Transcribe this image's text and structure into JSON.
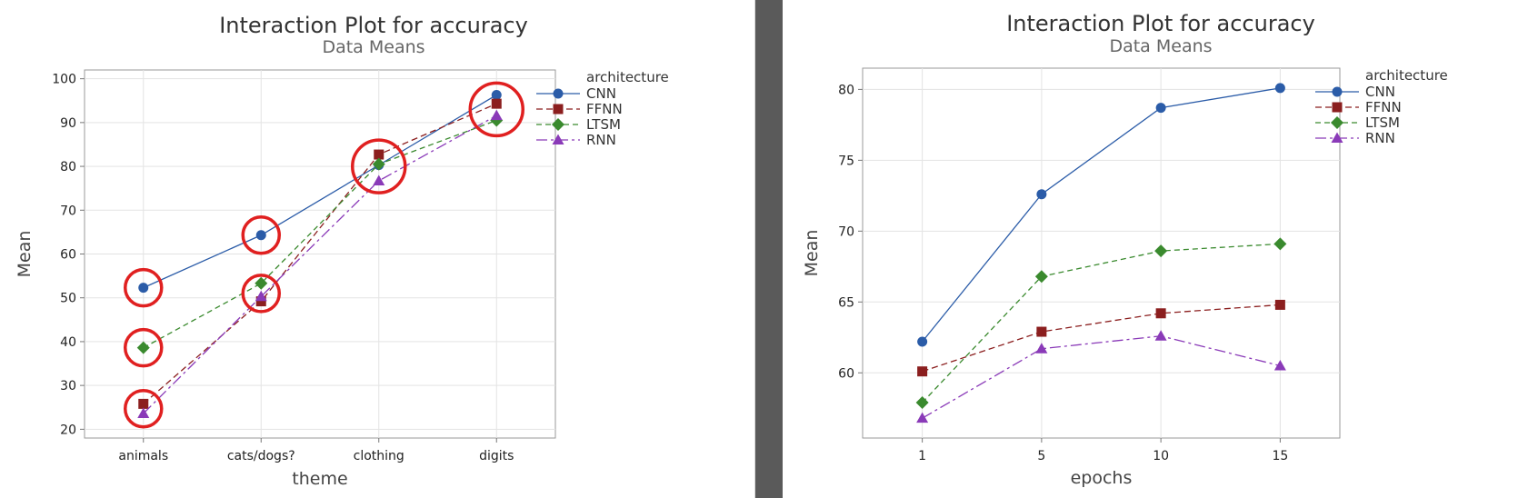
{
  "chart_data": [
    {
      "type": "line",
      "title": "Interaction Plot for accuracy",
      "subtitle": "Data Means",
      "xlabel": "theme",
      "ylabel": "Mean",
      "categories": [
        "animals",
        "cats/dogs?",
        "clothing",
        "digits"
      ],
      "ylim": [
        18,
        102
      ],
      "yticks": [
        20,
        30,
        40,
        50,
        60,
        70,
        80,
        90,
        100
      ],
      "grid": true,
      "legend_title": "architecture",
      "legend_position": "right",
      "series": [
        {
          "name": "CNN",
          "values": [
            52.3,
            64.3,
            80.3,
            96.3
          ],
          "color": "#2b5ca8",
          "marker": "circle",
          "dash": ""
        },
        {
          "name": "FFNN",
          "values": [
            25.8,
            49.2,
            82.7,
            94.3
          ],
          "color": "#8b1e1e",
          "marker": "square",
          "dash": "7,4"
        },
        {
          "name": "LTSM",
          "values": [
            38.6,
            53.3,
            80.5,
            90.5
          ],
          "color": "#3a8a2e",
          "marker": "diamond",
          "dash": "6,4"
        },
        {
          "name": "RNN",
          "values": [
            23.6,
            50.3,
            76.7,
            91.6
          ],
          "color": "#8a3ab8",
          "marker": "triangle",
          "dash": "12,4,3,4"
        }
      ],
      "annotations": {
        "type": "circle-highlight",
        "color": "#e02020",
        "points": [
          {
            "category": "animals",
            "value": 52.3
          },
          {
            "category": "animals",
            "value": 38.6
          },
          {
            "category": "animals",
            "value": 24.7
          },
          {
            "category": "cats/dogs?",
            "value": 64.3
          },
          {
            "category": "cats/dogs?",
            "value": 51.0
          },
          {
            "category": "clothing",
            "value": 80.0
          },
          {
            "category": "digits",
            "value": 93.0
          }
        ]
      }
    },
    {
      "type": "line",
      "title": "Interaction Plot for accuracy",
      "subtitle": "Data Means",
      "xlabel": "epochs",
      "ylabel": "Mean",
      "categories": [
        "1",
        "5",
        "10",
        "15"
      ],
      "ylim": [
        55.4,
        81.5
      ],
      "yticks": [
        60,
        65,
        70,
        75,
        80
      ],
      "grid": true,
      "legend_title": "architecture",
      "legend_position": "right",
      "series": [
        {
          "name": "CNN",
          "values": [
            62.2,
            72.6,
            78.7,
            80.1
          ],
          "color": "#2b5ca8",
          "marker": "circle",
          "dash": ""
        },
        {
          "name": "FFNN",
          "values": [
            60.1,
            62.9,
            64.2,
            64.8
          ],
          "color": "#8b1e1e",
          "marker": "square",
          "dash": "7,4"
        },
        {
          "name": "LTSM",
          "values": [
            57.9,
            66.8,
            68.6,
            69.1
          ],
          "color": "#3a8a2e",
          "marker": "diamond",
          "dash": "6,4"
        },
        {
          "name": "RNN",
          "values": [
            56.8,
            61.7,
            62.6,
            60.5
          ],
          "color": "#8a3ab8",
          "marker": "triangle",
          "dash": "12,4,3,4"
        }
      ]
    }
  ]
}
